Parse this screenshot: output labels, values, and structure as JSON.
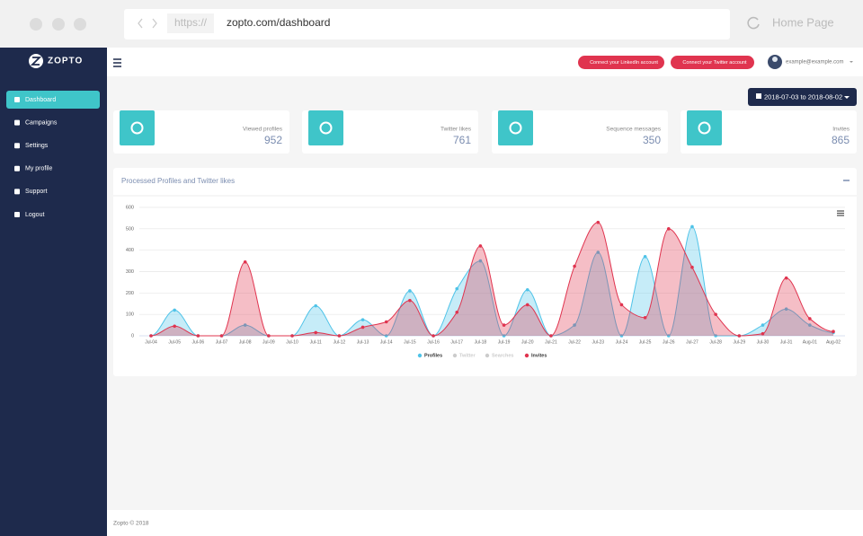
{
  "browser": {
    "protocol": "https://",
    "url": "zopto.com/dashboard",
    "home": "Home Page"
  },
  "sidebar": {
    "logo": "ZOPTO",
    "menu": [
      "Dashboard",
      "Campaigns",
      "Settings",
      "My profile",
      "Support",
      "Logout"
    ]
  },
  "navbar": {
    "buttons": [
      "Connect your LinkedIn account",
      "Connect your Twitter account"
    ],
    "user": "example@example.com"
  },
  "date_range": "2018-07-03 to 2018-08-02",
  "stats": [
    {
      "label": "Viewed profiles",
      "value": 952
    },
    {
      "label": "Twitter likes",
      "value": 761
    },
    {
      "label": "Sequence messages",
      "value": 350
    },
    {
      "label": "Invites",
      "value": 865
    }
  ],
  "footer": "Zopto © 2018",
  "chart_data": {
    "type": "area",
    "title": "Processed Profiles and Twitter likes",
    "categories": [
      "Jul-04",
      "Jul-05",
      "Jul-06",
      "Jul-07",
      "Jul-08",
      "Jul-09",
      "Jul-10",
      "Jul-11",
      "Jul-12",
      "Jul-13",
      "Jul-14",
      "Jul-15",
      "Jul-16",
      "Jul-17",
      "Jul-18",
      "Jul-19",
      "Jul-20",
      "Jul-21",
      "Jul-22",
      "Jul-23",
      "Jul-24",
      "Jul-25",
      "Jul-26",
      "Jul-27",
      "Jul-28",
      "Jul-29",
      "Jul-30",
      "Jul-31",
      "Aug-01",
      "Aug-02"
    ],
    "series": [
      {
        "name": "Profiles",
        "color": "#4fc3e8",
        "visible": true,
        "values": [
          0,
          120,
          0,
          0,
          50,
          0,
          0,
          140,
          0,
          75,
          0,
          210,
          0,
          220,
          350,
          0,
          215,
          0,
          50,
          390,
          0,
          370,
          0,
          510,
          0,
          0,
          50,
          125,
          50,
          15
        ]
      },
      {
        "name": "Twitter",
        "visible": false
      },
      {
        "name": "Searches",
        "visible": false
      },
      {
        "name": "Invites",
        "color": "#e0344f",
        "visible": true,
        "values": [
          0,
          45,
          0,
          0,
          345,
          0,
          0,
          15,
          0,
          40,
          65,
          165,
          0,
          110,
          420,
          50,
          145,
          0,
          325,
          530,
          145,
          85,
          500,
          320,
          100,
          0,
          10,
          270,
          80,
          20
        ]
      }
    ],
    "ylim": [
      0,
      600
    ],
    "yticks": [
      0,
      100,
      200,
      300,
      400,
      500,
      600
    ],
    "grid": true,
    "legend": "bottom"
  }
}
